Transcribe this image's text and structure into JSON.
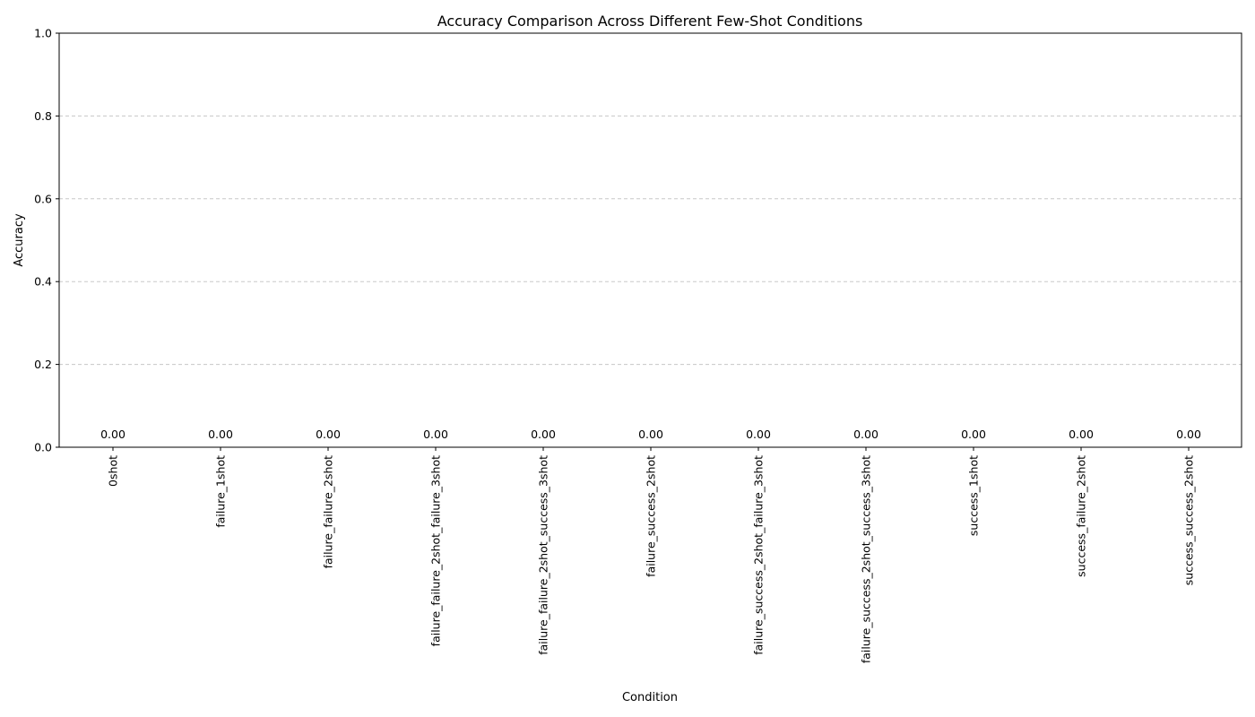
{
  "chart_data": {
    "type": "bar",
    "title": "Accuracy Comparison Across Different Few-Shot Conditions",
    "xlabel": "Condition",
    "ylabel": "Accuracy",
    "ylim": [
      0,
      1.0
    ],
    "yticks": [
      "0.0",
      "0.2",
      "0.4",
      "0.6",
      "0.8",
      "1.0"
    ],
    "grid": "y-dashed",
    "categories": [
      "0shot",
      "failure_1shot",
      "failure_failure_2shot",
      "failure_failure_2shot_failure_3shot",
      "failure_failure_2shot_success_3shot",
      "failure_success_2shot",
      "failure_success_2shot_failure_3shot",
      "failure_success_2shot_success_3shot",
      "success_1shot",
      "success_failure_2shot",
      "success_success_2shot"
    ],
    "values": [
      0,
      0,
      0,
      0,
      0,
      0,
      0,
      0,
      0,
      0,
      0
    ],
    "value_labels": [
      "0.00",
      "0.00",
      "0.00",
      "0.00",
      "0.00",
      "0.00",
      "0.00",
      "0.00",
      "0.00",
      "0.00",
      "0.00"
    ],
    "bar_color": "#1f77b4"
  }
}
